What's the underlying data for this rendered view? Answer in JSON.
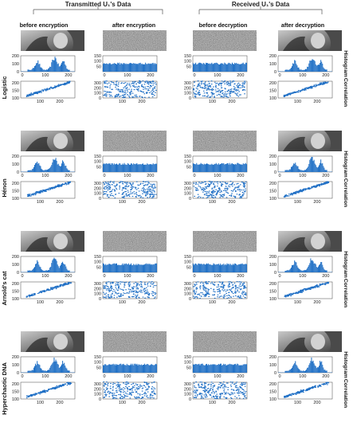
{
  "headers": {
    "transmitted": "Transmitted U₁'s Data",
    "received": "Received U₁'s Data",
    "columns": [
      "before encryption",
      "after encryption",
      "before decryption",
      "after decryption"
    ]
  },
  "row_labels": {
    "histogram": "Histogram",
    "correlation": "Correlation"
  },
  "methods": [
    "Logistic",
    "Hénon",
    "Arnold's cat",
    "Hyperchaotic DNA"
  ],
  "axis_ticks": {
    "hist_x": [
      "0",
      "100",
      "200"
    ],
    "hist_y_plain": [
      "0",
      "100",
      "200"
    ],
    "hist_y_cipher": [
      "0",
      "50",
      "100",
      "150"
    ],
    "corr_x": [
      "100",
      "200"
    ],
    "corr_y_plain": [
      "100",
      "150",
      "200"
    ],
    "corr_y_cipher": [
      "0",
      "100",
      "200",
      "300"
    ]
  },
  "colors": {
    "plot_blue": "#1f6fc5",
    "header_bracket": "#555555"
  }
}
